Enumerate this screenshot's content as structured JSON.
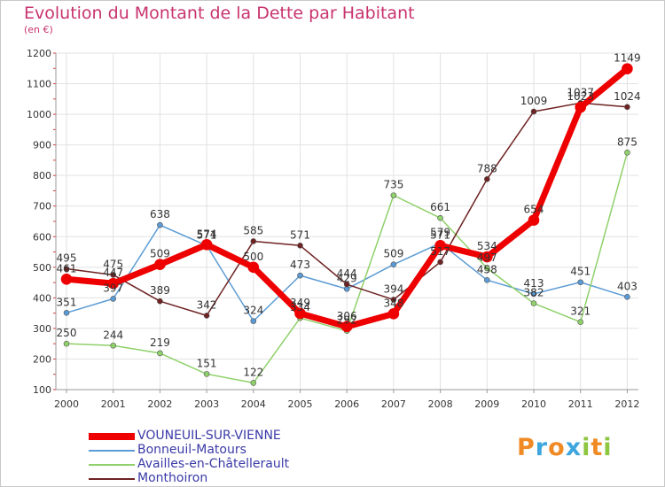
{
  "title": "Evolution du Montant de la Dette par Habitant",
  "subtitle": "(en €)",
  "logo": {
    "text": "Proxiti",
    "letters": [
      {
        "ch": "P",
        "color": "#f08a24"
      },
      {
        "ch": "r",
        "color": "#3ea6df"
      },
      {
        "ch": "o",
        "color": "#f08a24"
      },
      {
        "ch": "x",
        "color": "#3ea6df"
      },
      {
        "ch": "i",
        "color": "#8dc63f"
      },
      {
        "ch": "t",
        "color": "#f08a24"
      },
      {
        "ch": "i",
        "color": "#8dc63f"
      }
    ]
  },
  "chart_data": {
    "type": "line",
    "x": [
      "2000",
      "2001",
      "2002",
      "2003",
      "2004",
      "2005",
      "2006",
      "2007",
      "2008",
      "2009",
      "2010",
      "2011",
      "2012"
    ],
    "ylim": [
      100,
      1200
    ],
    "yticks": [
      100,
      200,
      300,
      400,
      500,
      600,
      700,
      800,
      900,
      1000,
      1100,
      1200
    ],
    "grid": true,
    "legend_position": "bottom-left",
    "series": [
      {
        "name": "VOUNEUIL-SUR-VIENNE",
        "color": "#ee0000",
        "width": 7,
        "values": [
          461,
          447,
          509,
          574,
          500,
          349,
          306,
          348,
          571,
          534,
          654,
          1023,
          1149
        ],
        "labels": [
          "461",
          "447",
          "509",
          "574",
          "500",
          "349",
          "306",
          "348",
          "571",
          "534",
          "654",
          "1023",
          "1149"
        ]
      },
      {
        "name": "Bonneuil-Matours",
        "color": "#5b9bd5",
        "width": 1.5,
        "values": [
          351,
          397,
          638,
          571,
          324,
          473,
          429,
          509,
          579,
          458,
          413,
          451,
          403
        ],
        "labels": [
          "351",
          "397",
          "638",
          "571",
          "324",
          "473",
          "429",
          "509",
          "579",
          "458",
          "413",
          "451",
          "403"
        ]
      },
      {
        "name": "Availles-en-Châtellerault",
        "color": "#8fd16a",
        "width": 1.5,
        "values": [
          250,
          244,
          219,
          151,
          122,
          334,
          292,
          735,
          661,
          497,
          382,
          321,
          875
        ],
        "labels": [
          "250",
          "244",
          "219",
          "151",
          "122",
          "334",
          "292",
          "735",
          "661",
          "497",
          "382",
          "321",
          "875"
        ]
      },
      {
        "name": "Monthoiron",
        "color": "#6e2222",
        "width": 1.5,
        "values": [
          495,
          475,
          389,
          342,
          585,
          571,
          444,
          394,
          517,
          788,
          1009,
          1037,
          1024
        ],
        "labels": [
          "495",
          "475",
          "389",
          "342",
          "585",
          "571",
          "444",
          "394",
          "517",
          "788",
          "1009",
          "1037",
          "1024"
        ]
      }
    ]
  }
}
